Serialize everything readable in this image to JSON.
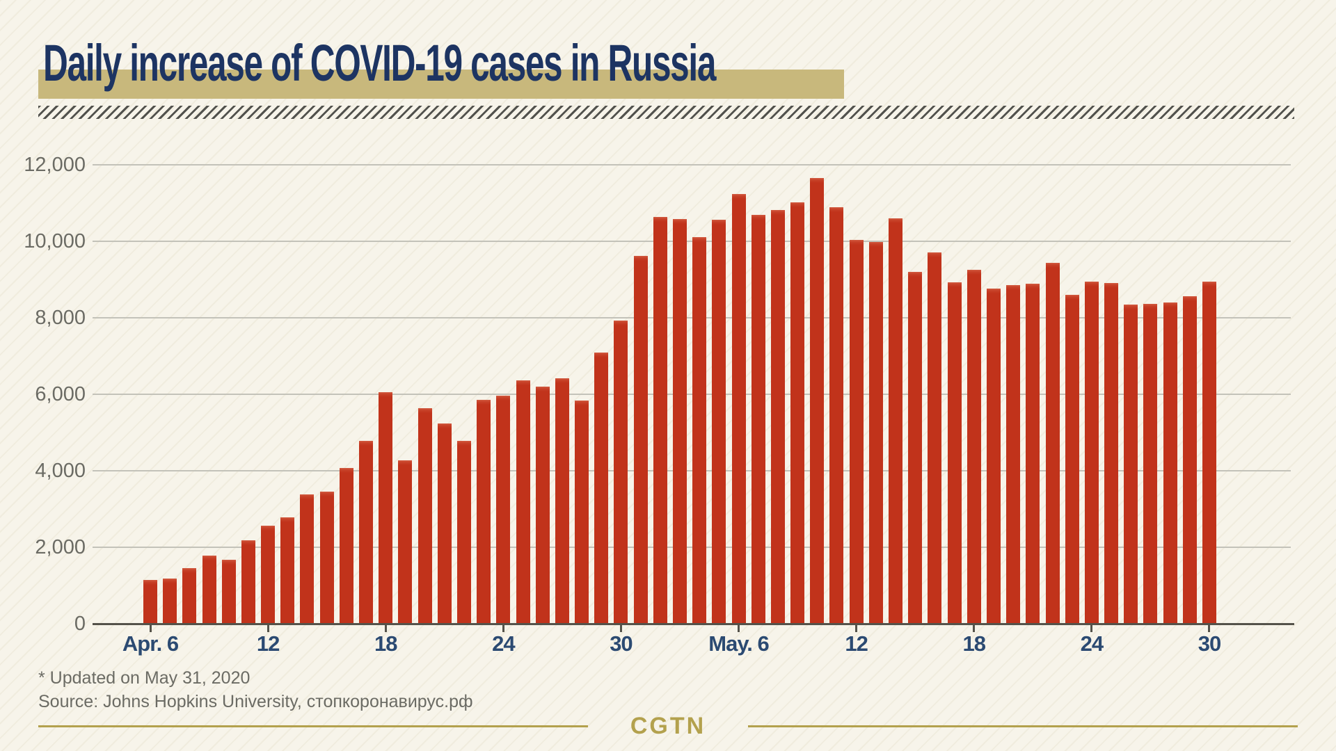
{
  "header": {
    "title": "Daily increase of COVID-19 cases in Russia"
  },
  "footer": {
    "updated_note": "* Updated on May 31, 2020",
    "source_note": "Source: Johns Hopkins University, стопкоронавирус.рф",
    "brand": "CGTN"
  },
  "colors": {
    "background": "#f7f4ea",
    "bar": "#c1331b",
    "bar_top_highlight": "#d25b40",
    "bar_mid": "#c74128",
    "navy_title": "#1d3462",
    "navy_axis_text": "#2b4a72",
    "gold_band": "#c8b87c",
    "gold_rule": "#b3a14d",
    "gridline": "#c3c2b9",
    "axis_line": "#54524a",
    "gray_text": "#6b6b64",
    "hatch_dark": "#52524d"
  },
  "chart_data": {
    "type": "bar",
    "title": "Daily increase of COVID-19 cases in Russia",
    "xlabel": "",
    "ylabel": "",
    "ylim": [
      0,
      12000
    ],
    "grid": true,
    "legend": "none",
    "x": [
      "Apr 6",
      "Apr 7",
      "Apr 8",
      "Apr 9",
      "Apr 10",
      "Apr 11",
      "Apr 12",
      "Apr 13",
      "Apr 14",
      "Apr 15",
      "Apr 16",
      "Apr 17",
      "Apr 18",
      "Apr 19",
      "Apr 20",
      "Apr 21",
      "Apr 22",
      "Apr 23",
      "Apr 24",
      "Apr 25",
      "Apr 26",
      "Apr 27",
      "Apr 28",
      "Apr 29",
      "Apr 30",
      "May 1",
      "May 2",
      "May 3",
      "May 4",
      "May 5",
      "May 6",
      "May 7",
      "May 8",
      "May 9",
      "May 10",
      "May 11",
      "May 12",
      "May 13",
      "May 14",
      "May 15",
      "May 16",
      "May 17",
      "May 18",
      "May 19",
      "May 20",
      "May 21",
      "May 22",
      "May 23",
      "May 24",
      "May 25",
      "May 26",
      "May 27",
      "May 28",
      "May 29",
      "May 30"
    ],
    "values": [
      1154,
      1175,
      1459,
      1786,
      1667,
      2186,
      2558,
      2774,
      3388,
      3448,
      4070,
      4785,
      6060,
      4268,
      5642,
      5236,
      4774,
      5849,
      5966,
      6361,
      6198,
      6411,
      5841,
      7099,
      7933,
      9623,
      10633,
      10581,
      10102,
      10559,
      11231,
      10699,
      10817,
      11012,
      11656,
      10899,
      10028,
      9974,
      10598,
      9200,
      9709,
      8926,
      9263,
      8764,
      8849,
      8894,
      9434,
      8599,
      8946,
      8915,
      8338,
      8371,
      8400,
      8572,
      8952
    ],
    "y_ticks": [
      {
        "value": 0,
        "label": "0"
      },
      {
        "value": 2000,
        "label": "2,000"
      },
      {
        "value": 4000,
        "label": "4,000"
      },
      {
        "value": 6000,
        "label": "6,000"
      },
      {
        "value": 8000,
        "label": "8,000"
      },
      {
        "value": 10000,
        "label": "10,000"
      },
      {
        "value": 12000,
        "label": "12,000"
      }
    ],
    "x_ticks": [
      {
        "index": 0,
        "label": "Apr. 6"
      },
      {
        "index": 6,
        "label": "12"
      },
      {
        "index": 12,
        "label": "18"
      },
      {
        "index": 18,
        "label": "24"
      },
      {
        "index": 24,
        "label": "30"
      },
      {
        "index": 30,
        "label": "May. 6"
      },
      {
        "index": 36,
        "label": "12"
      },
      {
        "index": 42,
        "label": "18"
      },
      {
        "index": 48,
        "label": "24"
      },
      {
        "index": 54,
        "label": "30"
      }
    ]
  }
}
